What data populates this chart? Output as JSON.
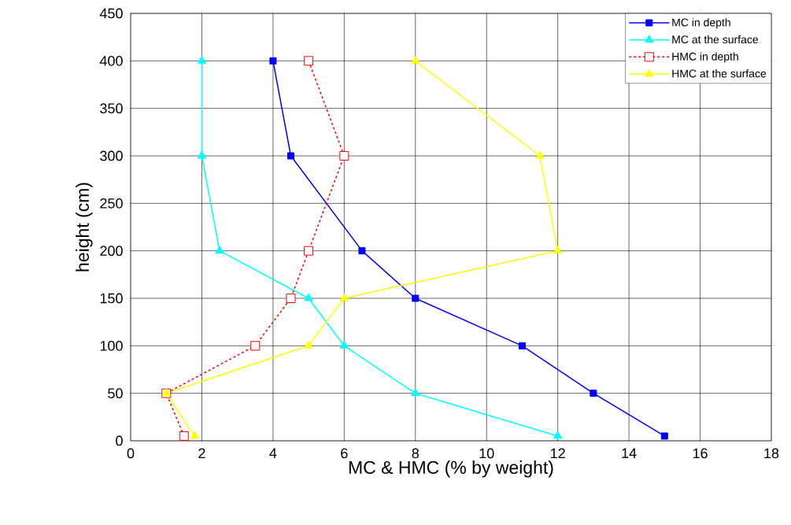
{
  "chart_data": {
    "type": "line",
    "xlabel": "MC & HMC (% by weight)",
    "ylabel": "height (cm)",
    "xlim": [
      0,
      18
    ],
    "xticks": [
      0,
      2,
      4,
      6,
      8,
      10,
      12,
      14,
      16,
      18
    ],
    "ylim": [
      0,
      450
    ],
    "yticks": [
      0,
      50,
      100,
      150,
      200,
      250,
      300,
      350,
      400,
      450
    ],
    "grid": true,
    "legend": "top right",
    "series": [
      {
        "name": "MC in depth",
        "color": "#0000ff",
        "marker": "square",
        "line_style": "solid",
        "x": [
          4,
          4.5,
          6.5,
          8,
          11,
          13,
          15
        ],
        "values": [
          400,
          300,
          200,
          150,
          100,
          50,
          5
        ]
      },
      {
        "name": "MC at the surface",
        "color": "#00ffff",
        "marker": "triangle",
        "line_style": "solid",
        "x": [
          2,
          2,
          2.5,
          5,
          6,
          8,
          12
        ],
        "values": [
          400,
          300,
          200,
          150,
          100,
          50,
          5
        ]
      },
      {
        "name": "HMC in depth",
        "color": "#ff0000",
        "marker": "square",
        "line_style": "dashed",
        "x": [
          5,
          6,
          5,
          4.5,
          3.5,
          1,
          1.5
        ],
        "values": [
          400,
          300,
          200,
          150,
          100,
          50,
          5
        ]
      },
      {
        "name": "HMC at the surface",
        "color": "#ffff00",
        "marker": "triangle",
        "line_style": "solid",
        "x": [
          8,
          11.5,
          12,
          6,
          5,
          1,
          1.8
        ],
        "values": [
          400,
          300,
          200,
          150,
          100,
          50,
          5
        ]
      }
    ]
  }
}
